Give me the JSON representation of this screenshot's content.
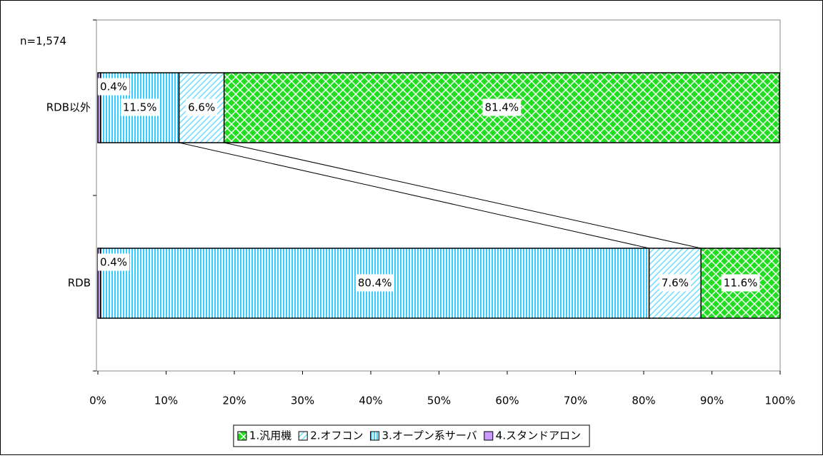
{
  "chart_data": {
    "type": "stacked_barh",
    "annotation": "n=1,574",
    "categories": [
      "RDB以外",
      "RDB"
    ],
    "series": [
      {
        "name": "4.スタンドアロン",
        "color": "#cc99ff",
        "values": [
          0.4,
          0.4
        ],
        "value_labels": [
          "0.4%",
          "0.4%"
        ]
      },
      {
        "name": "3.オープン系サーバ",
        "color": "#33ccff",
        "values": [
          11.5,
          80.4
        ],
        "value_labels": [
          "11.5%",
          "80.4%"
        ]
      },
      {
        "name": "2.オフコン",
        "color": "#66ddff",
        "values": [
          6.6,
          7.6
        ],
        "value_labels": [
          "6.6%",
          "7.6%"
        ]
      },
      {
        "name": "1.汎用機",
        "color": "#22dd22",
        "values": [
          81.4,
          11.6
        ],
        "value_labels": [
          "81.4%",
          "11.6%"
        ]
      }
    ],
    "xlim": [
      0,
      100
    ],
    "xticks": [
      {
        "value": 0,
        "label": "0%"
      },
      {
        "value": 10,
        "label": "10%"
      },
      {
        "value": 20,
        "label": "20%"
      },
      {
        "value": 30,
        "label": "30%"
      },
      {
        "value": 40,
        "label": "40%"
      },
      {
        "value": 50,
        "label": "50%"
      },
      {
        "value": 60,
        "label": "60%"
      },
      {
        "value": 70,
        "label": "70%"
      },
      {
        "value": 80,
        "label": "80%"
      },
      {
        "value": 90,
        "label": "90%"
      },
      {
        "value": 100,
        "label": "100%"
      }
    ],
    "legend": "bottom"
  }
}
